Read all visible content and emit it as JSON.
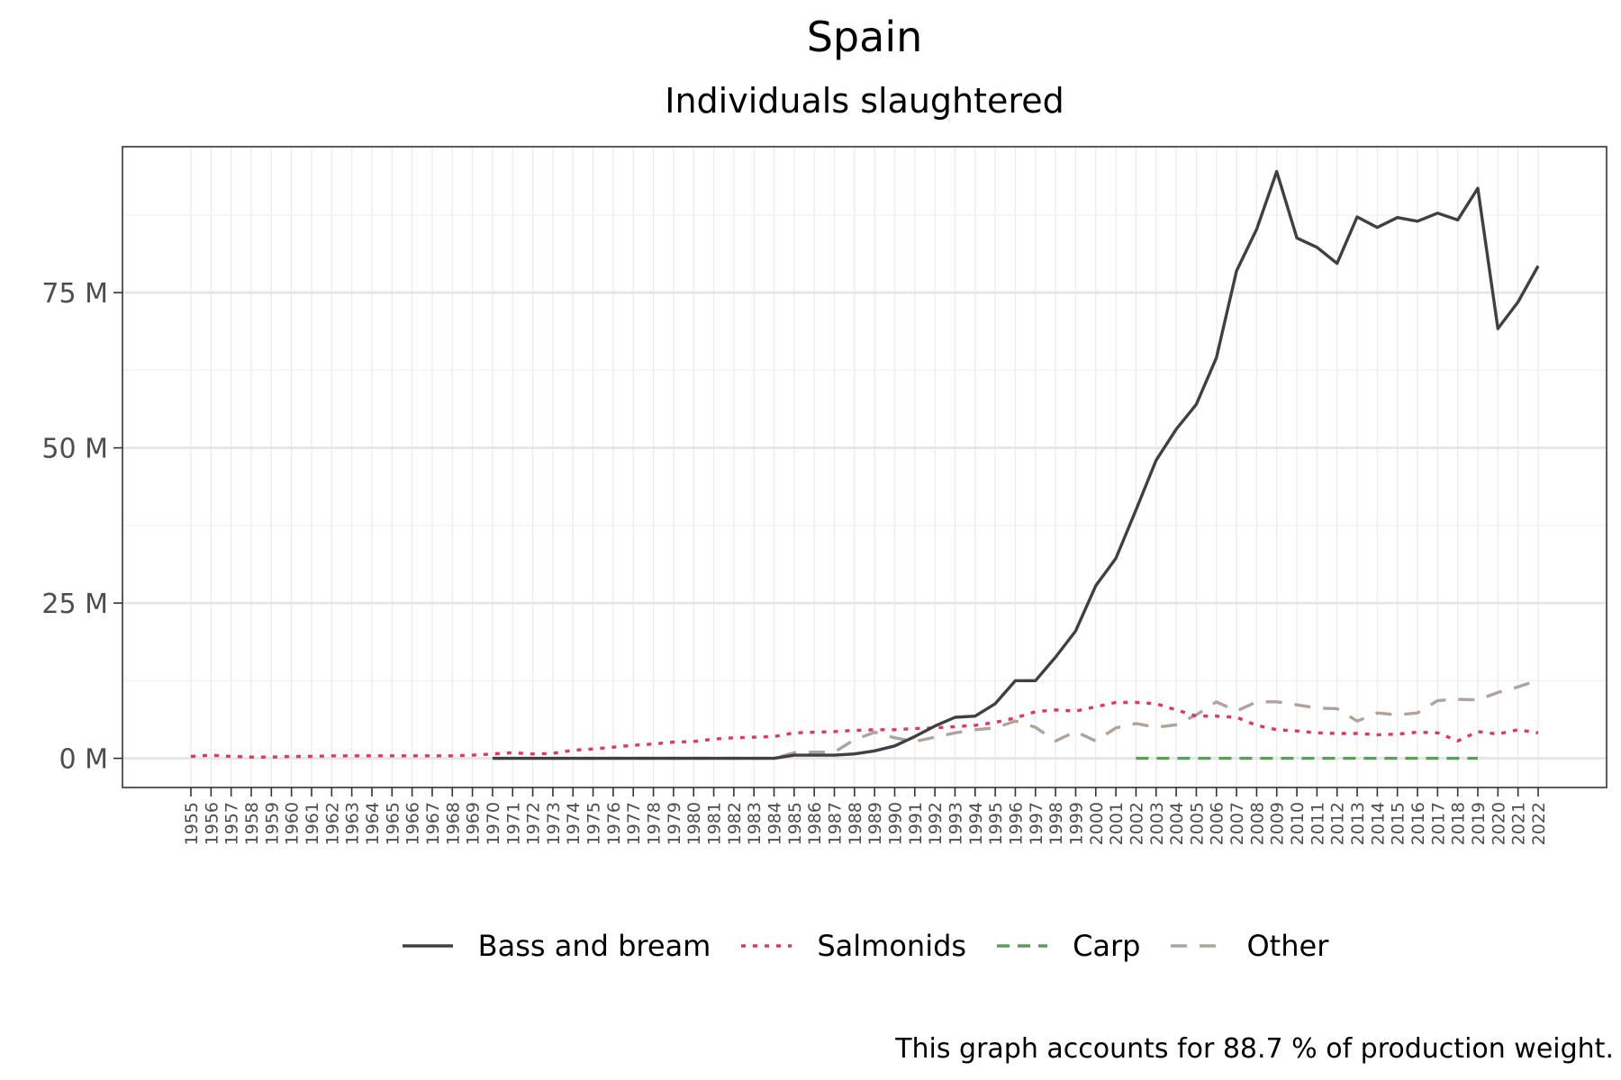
{
  "chart_data": {
    "type": "line",
    "title": "Spain",
    "subtitle": "Individuals slaughtered",
    "xlabel": "",
    "ylabel": "",
    "ylim": [
      0,
      100
    ],
    "y_ticks": [
      0,
      25,
      50,
      75
    ],
    "y_tick_labels": [
      "0 M",
      "25 M",
      "50 M",
      "75 M"
    ],
    "x": [
      1955,
      1956,
      1957,
      1958,
      1959,
      1960,
      1961,
      1962,
      1963,
      1964,
      1965,
      1966,
      1967,
      1968,
      1969,
      1970,
      1971,
      1972,
      1973,
      1974,
      1975,
      1976,
      1977,
      1978,
      1979,
      1980,
      1981,
      1982,
      1983,
      1984,
      1985,
      1986,
      1987,
      1988,
      1989,
      1990,
      1991,
      1992,
      1993,
      1994,
      1995,
      1996,
      1997,
      1998,
      1999,
      2000,
      2001,
      2002,
      2003,
      2004,
      2005,
      2006,
      2007,
      2008,
      2009,
      2010,
      2011,
      2012,
      2013,
      2014,
      2015,
      2016,
      2017,
      2018,
      2019,
      2020,
      2021,
      2022
    ],
    "grid": true,
    "legend_position": "bottom",
    "series": [
      {
        "name": "Bass and bream",
        "color": "#404040",
        "dash": "solid",
        "values": [
          null,
          null,
          null,
          null,
          null,
          null,
          null,
          null,
          null,
          null,
          null,
          null,
          null,
          null,
          null,
          0,
          0,
          0,
          0,
          0,
          0,
          0,
          0,
          0,
          0,
          0,
          0,
          0,
          0,
          0,
          0.5,
          0.5,
          0.5,
          0.7,
          1.2,
          2,
          3.5,
          5.2,
          6.6,
          6.8,
          8.8,
          12.5,
          12.5,
          16.3,
          20.5,
          27.8,
          32.2,
          40,
          48,
          53,
          57,
          64.5,
          78.5,
          85.2,
          94.5,
          83.8,
          82.3,
          79.7,
          87.2,
          85.5,
          87.1,
          86.5,
          87.8,
          86.7,
          91.8,
          69.2,
          73.5,
          79.3
        ]
      },
      {
        "name": "Salmonids",
        "color": "#e0365f",
        "dash": "dotted",
        "values": [
          0.3,
          0.5,
          0.3,
          0.2,
          0.2,
          0.3,
          0.3,
          0.4,
          0.4,
          0.4,
          0.4,
          0.4,
          0.4,
          0.4,
          0.5,
          0.7,
          0.9,
          0.7,
          0.8,
          1.3,
          1.5,
          1.8,
          2.1,
          2.3,
          2.6,
          2.7,
          3.1,
          3.3,
          3.4,
          3.5,
          4.1,
          4.2,
          4.3,
          4.5,
          4.6,
          4.6,
          4.8,
          4.9,
          5.1,
          5.3,
          5.8,
          6.5,
          7.5,
          7.8,
          7.6,
          8.3,
          9,
          9,
          8.8,
          7.8,
          6.8,
          6.8,
          6.6,
          5.3,
          4.6,
          4.4,
          4.1,
          4,
          4,
          3.8,
          3.9,
          4.2,
          4.1,
          2.8,
          4.3,
          3.9,
          4.6,
          4.1
        ]
      },
      {
        "name": "Carp",
        "color": "#5a9e5a",
        "dash": "dashed",
        "values": [
          null,
          null,
          null,
          null,
          null,
          null,
          null,
          null,
          null,
          null,
          null,
          null,
          null,
          null,
          null,
          null,
          null,
          null,
          null,
          null,
          null,
          null,
          null,
          null,
          null,
          null,
          null,
          null,
          null,
          null,
          null,
          null,
          null,
          null,
          null,
          null,
          null,
          null,
          null,
          null,
          null,
          null,
          null,
          null,
          null,
          null,
          null,
          0,
          0,
          0,
          0,
          0,
          0,
          0,
          0,
          0,
          0,
          0,
          0,
          0,
          0,
          0,
          0,
          0,
          0,
          null,
          null,
          null
        ]
      },
      {
        "name": "Other",
        "color": "#b0a39c",
        "dash": "longdash",
        "values": [
          null,
          null,
          null,
          null,
          null,
          null,
          null,
          null,
          null,
          null,
          null,
          null,
          null,
          null,
          null,
          0,
          0,
          0,
          0,
          0,
          0,
          0,
          0,
          0,
          0,
          0,
          0,
          0,
          0,
          0,
          0.9,
          1,
          1,
          3,
          4.2,
          3.3,
          2.7,
          3.4,
          4.1,
          4.6,
          4.9,
          6,
          5,
          2.8,
          4.3,
          2.8,
          4.9,
          5.6,
          5,
          5.4,
          7,
          9.1,
          7.6,
          9.1,
          9.1,
          8.6,
          8.1,
          8,
          6,
          7.3,
          7,
          7.3,
          9.3,
          9.5,
          9.4,
          10.6,
          11.5,
          12.6
        ]
      }
    ]
  },
  "caption": "This graph accounts for 88.7 % of production weight."
}
